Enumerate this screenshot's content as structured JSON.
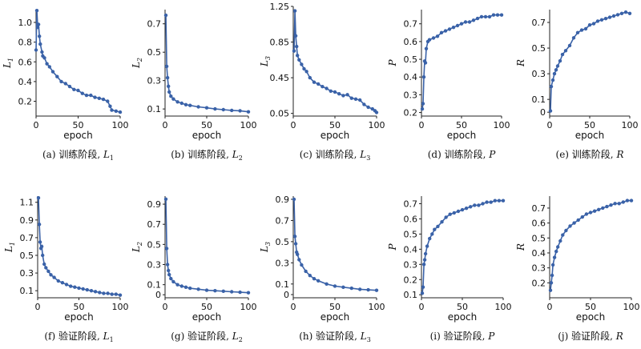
{
  "chart_data": [
    {
      "id": "a",
      "type": "line",
      "xlabel": "epoch",
      "ylabel": "L",
      "ylabel_sub": "1",
      "caption": "(a) 训练阶段,",
      "caption_var": "L",
      "caption_sub": "1",
      "xlim": [
        0,
        100
      ],
      "ylim": [
        0.05,
        1.13
      ],
      "xticks": [
        0,
        50,
        100
      ],
      "yticks": [
        0.2,
        0.4,
        0.6,
        0.8,
        1.0
      ],
      "ytick_labels": [
        "0.2",
        "0.4",
        "0.6",
        "0.8",
        "1.0"
      ],
      "points": [
        [
          0,
          0.72
        ],
        [
          1,
          1.12
        ],
        [
          2,
          0.95
        ],
        [
          3,
          0.98
        ],
        [
          4,
          0.86
        ],
        [
          5,
          0.78
        ],
        [
          7,
          0.7
        ],
        [
          8,
          0.66
        ],
        [
          10,
          0.64
        ],
        [
          13,
          0.58
        ],
        [
          16,
          0.55
        ],
        [
          20,
          0.5
        ],
        [
          25,
          0.45
        ],
        [
          30,
          0.4
        ],
        [
          35,
          0.38
        ],
        [
          40,
          0.35
        ],
        [
          45,
          0.32
        ],
        [
          50,
          0.31
        ],
        [
          55,
          0.28
        ],
        [
          60,
          0.26
        ],
        [
          65,
          0.26
        ],
        [
          70,
          0.24
        ],
        [
          75,
          0.23
        ],
        [
          80,
          0.22
        ],
        [
          85,
          0.2
        ],
        [
          88,
          0.15
        ],
        [
          90,
          0.11
        ],
        [
          95,
          0.1
        ],
        [
          100,
          0.09
        ]
      ]
    },
    {
      "id": "b",
      "type": "line",
      "xlabel": "epoch",
      "ylabel": "L",
      "ylabel_sub": "2",
      "caption": "(b) 训练阶段,",
      "caption_var": "L",
      "caption_sub": "2",
      "xlim": [
        0,
        100
      ],
      "ylim": [
        0.05,
        0.8
      ],
      "xticks": [
        0,
        50,
        100
      ],
      "yticks": [
        0.1,
        0.3,
        0.5,
        0.7
      ],
      "ytick_labels": [
        "0.1",
        "0.3",
        "0.5",
        "0.7"
      ],
      "points": [
        [
          1,
          0.76
        ],
        [
          2,
          0.4
        ],
        [
          3,
          0.32
        ],
        [
          4,
          0.26
        ],
        [
          5,
          0.22
        ],
        [
          7,
          0.19
        ],
        [
          10,
          0.17
        ],
        [
          15,
          0.15
        ],
        [
          20,
          0.14
        ],
        [
          25,
          0.13
        ],
        [
          30,
          0.125
        ],
        [
          40,
          0.115
        ],
        [
          50,
          0.108
        ],
        [
          60,
          0.1
        ],
        [
          70,
          0.095
        ],
        [
          80,
          0.09
        ],
        [
          90,
          0.087
        ],
        [
          100,
          0.08
        ]
      ]
    },
    {
      "id": "c",
      "type": "line",
      "xlabel": "epoch",
      "ylabel": "L",
      "ylabel_sub": "3",
      "caption": "(c) 训练阶段,",
      "caption_var": "L",
      "caption_sub": "3",
      "xlim": [
        0,
        100
      ],
      "ylim": [
        0.02,
        1.25
      ],
      "xticks": [
        0,
        50,
        100
      ],
      "yticks": [
        0.05,
        0.45,
        0.85,
        1.25
      ],
      "ytick_labels": [
        "0.05",
        "0.45",
        "0.85",
        "1.25"
      ],
      "points": [
        [
          1,
          0.75
        ],
        [
          2,
          1.2
        ],
        [
          3,
          0.92
        ],
        [
          4,
          0.8
        ],
        [
          5,
          0.7
        ],
        [
          7,
          0.65
        ],
        [
          10,
          0.6
        ],
        [
          13,
          0.55
        ],
        [
          16,
          0.52
        ],
        [
          20,
          0.45
        ],
        [
          25,
          0.4
        ],
        [
          30,
          0.38
        ],
        [
          35,
          0.35
        ],
        [
          40,
          0.33
        ],
        [
          45,
          0.3
        ],
        [
          50,
          0.29
        ],
        [
          55,
          0.27
        ],
        [
          60,
          0.25
        ],
        [
          65,
          0.26
        ],
        [
          70,
          0.22
        ],
        [
          75,
          0.21
        ],
        [
          80,
          0.2
        ],
        [
          85,
          0.15
        ],
        [
          90,
          0.12
        ],
        [
          95,
          0.1
        ],
        [
          98,
          0.08
        ],
        [
          100,
          0.06
        ]
      ]
    },
    {
      "id": "d",
      "type": "line",
      "xlabel": "epoch",
      "ylabel": "P",
      "ylabel_sub": "",
      "caption": "(d) 训练阶段,",
      "caption_var": "P",
      "caption_sub": "",
      "xlim": [
        0,
        100
      ],
      "ylim": [
        0.18,
        0.78
      ],
      "xticks": [
        0,
        50,
        100
      ],
      "yticks": [
        0.2,
        0.3,
        0.4,
        0.5,
        0.6,
        0.7
      ],
      "ytick_labels": [
        "0.2",
        "0.3",
        "0.4",
        "0.5",
        "0.6",
        "0.7"
      ],
      "points": [
        [
          1,
          0.22
        ],
        [
          2,
          0.25
        ],
        [
          3,
          0.4
        ],
        [
          4,
          0.49
        ],
        [
          5,
          0.48
        ],
        [
          6,
          0.56
        ],
        [
          8,
          0.6
        ],
        [
          10,
          0.61
        ],
        [
          15,
          0.62
        ],
        [
          20,
          0.63
        ],
        [
          25,
          0.65
        ],
        [
          30,
          0.66
        ],
        [
          35,
          0.67
        ],
        [
          40,
          0.68
        ],
        [
          45,
          0.69
        ],
        [
          50,
          0.7
        ],
        [
          55,
          0.71
        ],
        [
          60,
          0.71
        ],
        [
          65,
          0.72
        ],
        [
          70,
          0.73
        ],
        [
          75,
          0.74
        ],
        [
          80,
          0.74
        ],
        [
          85,
          0.74
        ],
        [
          90,
          0.75
        ],
        [
          95,
          0.75
        ],
        [
          100,
          0.75
        ]
      ]
    },
    {
      "id": "e",
      "type": "line",
      "xlabel": "epoch",
      "ylabel": "R",
      "ylabel_sub": "",
      "caption": "(e) 训练阶段,",
      "caption_var": "R",
      "caption_sub": "",
      "xlim": [
        0,
        100
      ],
      "ylim": [
        -0.03,
        0.8
      ],
      "xticks": [
        0,
        50,
        100
      ],
      "yticks": [
        0,
        0.1,
        0.3,
        0.5,
        0.7
      ],
      "ytick_labels": [
        "0",
        "0.1",
        "0.3",
        "0.5",
        "0.7"
      ],
      "points": [
        [
          1,
          0.01
        ],
        [
          2,
          0.2
        ],
        [
          4,
          0.25
        ],
        [
          6,
          0.3
        ],
        [
          8,
          0.33
        ],
        [
          10,
          0.36
        ],
        [
          13,
          0.4
        ],
        [
          16,
          0.45
        ],
        [
          20,
          0.48
        ],
        [
          25,
          0.52
        ],
        [
          30,
          0.58
        ],
        [
          35,
          0.62
        ],
        [
          40,
          0.64
        ],
        [
          45,
          0.65
        ],
        [
          50,
          0.68
        ],
        [
          55,
          0.69
        ],
        [
          60,
          0.71
        ],
        [
          65,
          0.72
        ],
        [
          70,
          0.73
        ],
        [
          75,
          0.74
        ],
        [
          80,
          0.75
        ],
        [
          85,
          0.76
        ],
        [
          90,
          0.77
        ],
        [
          95,
          0.78
        ],
        [
          100,
          0.77
        ]
      ]
    },
    {
      "id": "f",
      "type": "line",
      "xlabel": "epoch",
      "ylabel": "L",
      "ylabel_sub": "1",
      "caption": "(f) 验证阶段,",
      "caption_var": "L",
      "caption_sub": "1",
      "xlim": [
        0,
        100
      ],
      "ylim": [
        0.02,
        1.17
      ],
      "xticks": [
        0,
        50,
        100
      ],
      "yticks": [
        0.1,
        0.3,
        0.5,
        0.7,
        0.9,
        1.1
      ],
      "ytick_labels": [
        "0.1",
        "0.3",
        "0.5",
        "0.7",
        "0.9",
        "1.1"
      ],
      "points": [
        [
          1,
          1.15
        ],
        [
          2,
          0.85
        ],
        [
          3,
          0.65
        ],
        [
          4,
          0.58
        ],
        [
          5,
          0.6
        ],
        [
          6,
          0.5
        ],
        [
          8,
          0.4
        ],
        [
          10,
          0.36
        ],
        [
          13,
          0.32
        ],
        [
          16,
          0.28
        ],
        [
          20,
          0.25
        ],
        [
          25,
          0.21
        ],
        [
          30,
          0.19
        ],
        [
          35,
          0.17
        ],
        [
          40,
          0.15
        ],
        [
          45,
          0.14
        ],
        [
          50,
          0.13
        ],
        [
          55,
          0.12
        ],
        [
          60,
          0.11
        ],
        [
          65,
          0.1
        ],
        [
          70,
          0.09
        ],
        [
          75,
          0.08
        ],
        [
          80,
          0.07
        ],
        [
          85,
          0.07
        ],
        [
          90,
          0.06
        ],
        [
          95,
          0.06
        ],
        [
          100,
          0.05
        ]
      ]
    },
    {
      "id": "g",
      "type": "line",
      "xlabel": "epoch",
      "ylabel": "L",
      "ylabel_sub": "2",
      "caption": "(g) 验证阶段,",
      "caption_var": "L",
      "caption_sub": "2",
      "xlim": [
        0,
        100
      ],
      "ylim": [
        -0.03,
        0.98
      ],
      "xticks": [
        0,
        50,
        100
      ],
      "yticks": [
        0,
        0.1,
        0.3,
        0.5,
        0.7,
        0.9
      ],
      "ytick_labels": [
        "0",
        "0.1",
        "0.3",
        "0.5",
        "0.7",
        "0.9"
      ],
      "points": [
        [
          1,
          0.95
        ],
        [
          2,
          0.46
        ],
        [
          3,
          0.3
        ],
        [
          4,
          0.24
        ],
        [
          5,
          0.2
        ],
        [
          7,
          0.16
        ],
        [
          10,
          0.13
        ],
        [
          15,
          0.1
        ],
        [
          20,
          0.085
        ],
        [
          25,
          0.075
        ],
        [
          30,
          0.065
        ],
        [
          40,
          0.055
        ],
        [
          50,
          0.045
        ],
        [
          60,
          0.04
        ],
        [
          70,
          0.035
        ],
        [
          80,
          0.03
        ],
        [
          90,
          0.025
        ],
        [
          100,
          0.02
        ]
      ]
    },
    {
      "id": "h",
      "type": "line",
      "xlabel": "epoch",
      "ylabel": "L",
      "ylabel_sub": "3",
      "caption": "(h) 验证阶段,",
      "caption_var": "L",
      "caption_sub": "3",
      "xlim": [
        0,
        100
      ],
      "ylim": [
        -0.03,
        0.93
      ],
      "xticks": [
        0,
        50,
        100
      ],
      "yticks": [
        0,
        0.1,
        0.3,
        0.5,
        0.7,
        0.9
      ],
      "ytick_labels": [
        "0",
        "0.1",
        "0.3",
        "0.5",
        "0.7",
        "0.9"
      ],
      "points": [
        [
          1,
          0.9
        ],
        [
          2,
          0.55
        ],
        [
          3,
          0.48
        ],
        [
          4,
          0.4
        ],
        [
          5,
          0.38
        ],
        [
          7,
          0.33
        ],
        [
          10,
          0.28
        ],
        [
          15,
          0.22
        ],
        [
          20,
          0.18
        ],
        [
          25,
          0.15
        ],
        [
          30,
          0.13
        ],
        [
          40,
          0.1
        ],
        [
          50,
          0.08
        ],
        [
          60,
          0.07
        ],
        [
          70,
          0.06
        ],
        [
          80,
          0.05
        ],
        [
          90,
          0.045
        ],
        [
          100,
          0.04
        ]
      ]
    },
    {
      "id": "i",
      "type": "line",
      "xlabel": "epoch",
      "ylabel": "P",
      "ylabel_sub": "",
      "caption": "(i) 验证阶段,",
      "caption_var": "P",
      "caption_sub": "",
      "xlim": [
        0,
        100
      ],
      "ylim": [
        0.08,
        0.75
      ],
      "xticks": [
        0,
        50,
        100
      ],
      "yticks": [
        0.1,
        0.2,
        0.3,
        0.4,
        0.5,
        0.6,
        0.7
      ],
      "ytick_labels": [
        "0.1",
        "0.2",
        "0.3",
        "0.4",
        "0.5",
        "0.6",
        "0.7"
      ],
      "points": [
        [
          1,
          0.11
        ],
        [
          2,
          0.15
        ],
        [
          3,
          0.3
        ],
        [
          4,
          0.33
        ],
        [
          5,
          0.37
        ],
        [
          7,
          0.42
        ],
        [
          10,
          0.47
        ],
        [
          13,
          0.5
        ],
        [
          16,
          0.53
        ],
        [
          20,
          0.55
        ],
        [
          25,
          0.58
        ],
        [
          30,
          0.61
        ],
        [
          35,
          0.63
        ],
        [
          40,
          0.64
        ],
        [
          45,
          0.65
        ],
        [
          50,
          0.66
        ],
        [
          55,
          0.67
        ],
        [
          60,
          0.68
        ],
        [
          65,
          0.69
        ],
        [
          70,
          0.69
        ],
        [
          75,
          0.7
        ],
        [
          80,
          0.71
        ],
        [
          85,
          0.71
        ],
        [
          90,
          0.72
        ],
        [
          95,
          0.72
        ],
        [
          100,
          0.72
        ]
      ]
    },
    {
      "id": "j",
      "type": "line",
      "xlabel": "epoch",
      "ylabel": "R",
      "ylabel_sub": "",
      "caption": "(j) 验证阶段,",
      "caption_var": "R",
      "caption_sub": "",
      "xlim": [
        0,
        100
      ],
      "ylim": [
        0.1,
        0.78
      ],
      "xticks": [
        0,
        50,
        100
      ],
      "yticks": [
        0.2,
        0.3,
        0.4,
        0.5,
        0.6,
        0.7
      ],
      "ytick_labels": [
        "0.2",
        "0.3",
        "0.4",
        "0.5",
        "0.6",
        "0.7"
      ],
      "points": [
        [
          1,
          0.15
        ],
        [
          2,
          0.2
        ],
        [
          3,
          0.25
        ],
        [
          4,
          0.32
        ],
        [
          6,
          0.37
        ],
        [
          8,
          0.41
        ],
        [
          10,
          0.44
        ],
        [
          13,
          0.48
        ],
        [
          16,
          0.52
        ],
        [
          20,
          0.55
        ],
        [
          25,
          0.58
        ],
        [
          30,
          0.6
        ],
        [
          35,
          0.62
        ],
        [
          40,
          0.64
        ],
        [
          45,
          0.66
        ],
        [
          50,
          0.67
        ],
        [
          55,
          0.68
        ],
        [
          60,
          0.69
        ],
        [
          65,
          0.7
        ],
        [
          70,
          0.71
        ],
        [
          75,
          0.72
        ],
        [
          80,
          0.73
        ],
        [
          85,
          0.73
        ],
        [
          90,
          0.74
        ],
        [
          95,
          0.75
        ],
        [
          100,
          0.75
        ]
      ]
    }
  ],
  "style": {
    "line_color": "#3a62a8",
    "marker_color": "#3a62a8",
    "ref_color": "#d9534f",
    "axis_color": "#222222"
  }
}
